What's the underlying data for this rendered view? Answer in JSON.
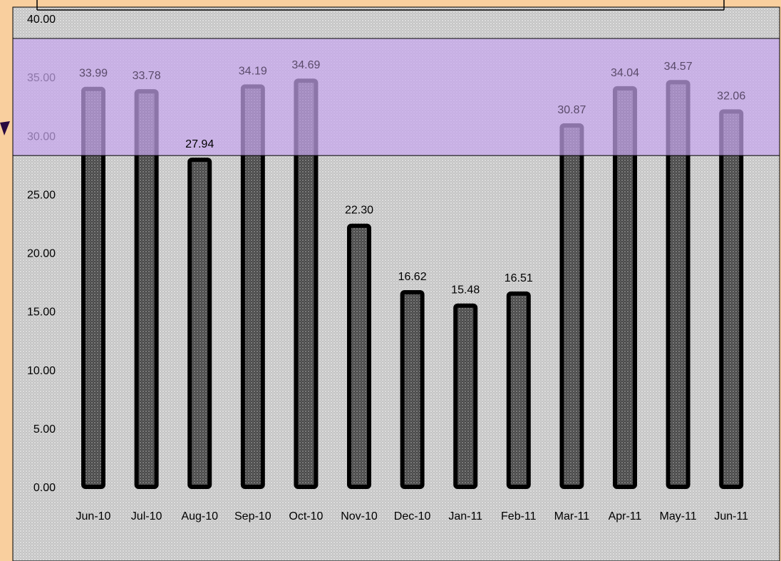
{
  "chart_data": {
    "type": "bar",
    "categories": [
      "Jun-10",
      "Jul-10",
      "Aug-10",
      "Sep-10",
      "Oct-10",
      "Nov-10",
      "Dec-10",
      "Jan-11",
      "Feb-11",
      "Mar-11",
      "Apr-11",
      "May-11",
      "Jun-11"
    ],
    "values": [
      33.99,
      33.78,
      27.94,
      34.19,
      34.69,
      22.3,
      16.62,
      15.48,
      16.51,
      30.87,
      34.04,
      34.57,
      32.06
    ],
    "value_labels": [
      "33.99",
      "33.78",
      "27.94",
      "34.19",
      "34.69",
      "22.30",
      "16.62",
      "15.48",
      "16.51",
      "30.87",
      "34.04",
      "34.57",
      "32.06"
    ],
    "y_ticks": [
      "0.00",
      "5.00",
      "10.00",
      "15.00",
      "20.00",
      "25.00",
      "30.00",
      "35.00",
      "40.00"
    ],
    "ylim": [
      0,
      40
    ],
    "highlight_band": {
      "from": 28.3,
      "to": 38.3,
      "color": "#c8a6f0"
    },
    "grid": false,
    "colors": {
      "plot_background": "#c9c9c9",
      "page_background": "#f9cf9e",
      "bar_fill": "#555555",
      "bar_outline": "#000000"
    }
  }
}
